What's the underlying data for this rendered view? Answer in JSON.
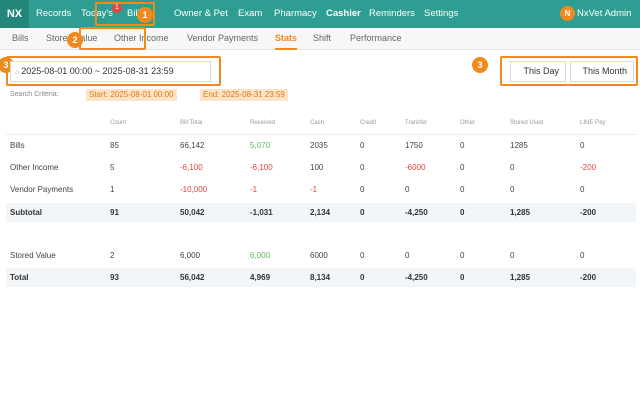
{
  "app": {
    "logo": "NX",
    "user_initial": "N",
    "user_name": "NxVet Admin",
    "badge_count": "1"
  },
  "topnav": [
    "Records",
    "Today's",
    "Billing",
    "Owner & Pet",
    "Exam",
    "Pharmacy",
    "Cashier",
    "Reminders",
    "Settings"
  ],
  "subtabs": [
    "Bills",
    "Stored Value",
    "Other Income",
    "Vendor Payments",
    "Stats",
    "Shift",
    "Performance"
  ],
  "active_subtab": "Stats",
  "annotations": [
    "1",
    "2",
    "3",
    "3"
  ],
  "filters": {
    "date_range": "2025-08-01 00:00 ~ 2025-08-31 23:59",
    "calendar_icon": "calendar-icon",
    "this_day": "This Day",
    "this_month": "This Month",
    "criteria_label": "Search Criteria:",
    "start_tag": "Start: 2025-08-01 00:00",
    "end_tag": "End: 2025-08-31 23:59"
  },
  "table": {
    "headers": [
      "Count",
      "Bill Total",
      "Received",
      "Cash",
      "Credit",
      "Transfer",
      "Other",
      "Stored Used",
      "LINE Pay"
    ],
    "rows": [
      {
        "label": "Bills",
        "cells": [
          "85",
          "66,142",
          "5,070",
          "2035",
          "0",
          "1750",
          "0",
          "1285",
          "0"
        ]
      },
      {
        "label": "Other Income",
        "cells": [
          "5",
          "-6,100",
          "-6,100",
          "100",
          "0",
          "-6000",
          "0",
          "0",
          "-200"
        ]
      },
      {
        "label": "Vendor Payments",
        "cells": [
          "1",
          "-10,000",
          "-1",
          "-1",
          "0",
          "0",
          "0",
          "0",
          "0"
        ]
      },
      {
        "label": "Subtotal",
        "cells": [
          "91",
          "50,042",
          "-1,031",
          "2,134",
          "0",
          "-4,250",
          "0",
          "1,285",
          "-200"
        ]
      },
      {
        "label": "Stored Value",
        "cells": [
          "2",
          "6,000",
          "6,000",
          "6000",
          "0",
          "0",
          "0",
          "0",
          "0"
        ]
      },
      {
        "label": "Total",
        "cells": [
          "93",
          "56,042",
          "4,969",
          "8,134",
          "0",
          "-4,250",
          "0",
          "1,285",
          "-200"
        ]
      }
    ]
  },
  "colors": {
    "header_bg": "#2e9e92",
    "accent": "#f08a1c",
    "negative": "#e8453c",
    "positive": "#5cb85c"
  }
}
